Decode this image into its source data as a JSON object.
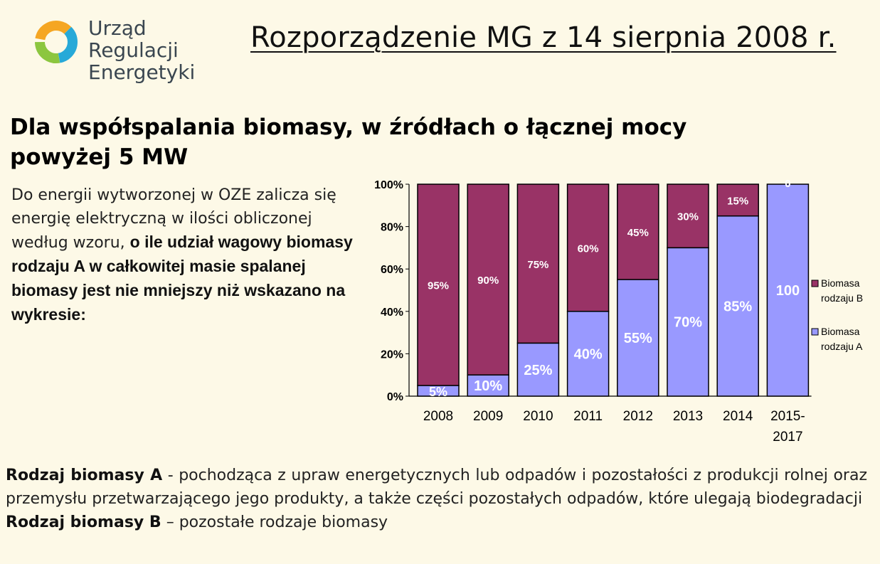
{
  "logo": {
    "line1": "Urząd Regulacji",
    "line2": "Energetyki"
  },
  "title": "Rozporządzenie MG z 14 sierpnia 2008 r.",
  "subtitle": "Dla współspalania biomasy, w źródłach o łącznej mocy powyżej 5 MW",
  "intro": {
    "normal": "Do energii wytworzonej w OZE zalicza się energię elektryczną w ilości obliczonej według wzoru,",
    "bold": "o ile udział wagowy biomasy rodzaju A w całkowitej masie spalanej biomasy jest nie mniejszy niż wskazano na wykresie:"
  },
  "definitions": {
    "a_term": "Rodzaj biomasy A",
    "a_text": "- pochodząca z upraw energetycznych lub odpadów i pozostałości z produkcji rolnej oraz przemysłu przetwarzającego jego produkty, a także części pozostałych odpadów, które ulegają biodegradacji",
    "b_term": "Rodzaj biomasy B",
    "b_text": "– pozostałe rodzaje biomasy"
  },
  "chart_data": {
    "type": "bar",
    "stacked": true,
    "percent": true,
    "categories": [
      "2008",
      "2009",
      "2010",
      "2011",
      "2012",
      "2013",
      "2014",
      "2015-2017"
    ],
    "series": [
      {
        "name": "Biomasa rodzaju A",
        "color": "#9999ff",
        "values": [
          5,
          10,
          25,
          40,
          55,
          70,
          85,
          100
        ],
        "labels": [
          "5%",
          "10%",
          "25%",
          "40%",
          "55%",
          "70%",
          "85%",
          "100"
        ]
      },
      {
        "name": "Biomasa rodzaju B",
        "color": "#993366",
        "values": [
          95,
          90,
          75,
          60,
          45,
          30,
          15,
          0
        ],
        "labels": [
          "95%",
          "90%",
          "75%",
          "60%",
          "45%",
          "30%",
          "15%",
          "0"
        ]
      }
    ],
    "yticks": [
      "0%",
      "20%",
      "40%",
      "60%",
      "80%",
      "100%"
    ],
    "ylim": [
      0,
      100
    ],
    "legend": [
      "Biomasa rodzaju B",
      "Biomasa rodzaju A"
    ],
    "legend_position": "right",
    "grid": false
  }
}
